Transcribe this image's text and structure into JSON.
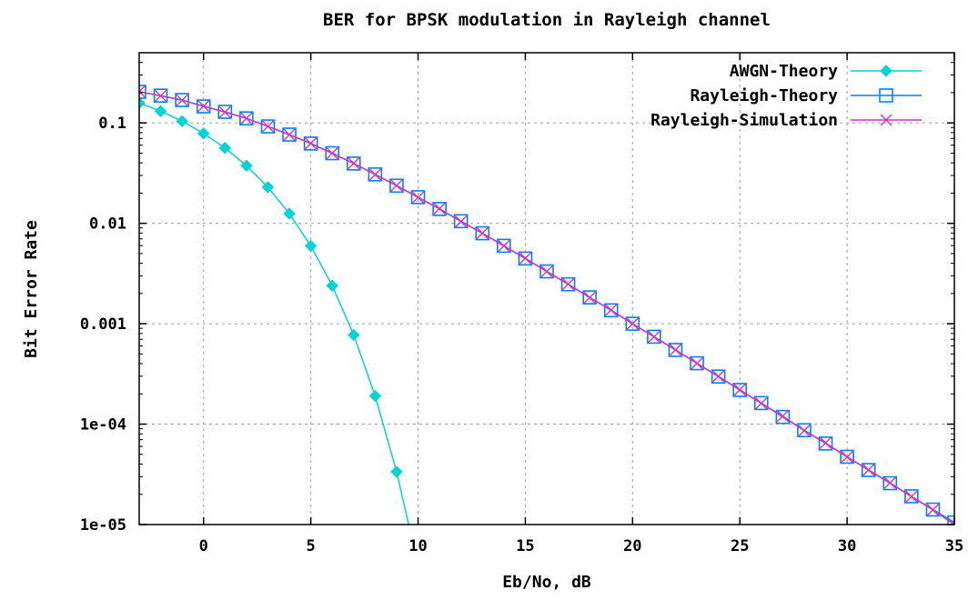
{
  "chart_data": {
    "type": "line",
    "title": "BER for BPSK modulation in Rayleigh channel",
    "xlabel": "Eb/No, dB",
    "ylabel": "Bit Error Rate",
    "xlim": [
      -3,
      35
    ],
    "ylim": [
      1e-05,
      0.5
    ],
    "yscale": "log",
    "grid": true,
    "legend_position": "top-right",
    "x_ticks": [
      0,
      5,
      10,
      15,
      20,
      25,
      30,
      35
    ],
    "x_tick_labels": [
      "0",
      "5",
      "10",
      "15",
      "20",
      "25",
      "30",
      "35"
    ],
    "y_ticks": [
      0.1,
      0.01,
      0.001,
      0.0001,
      1e-05
    ],
    "y_tick_labels": [
      "0.1",
      "0.01",
      "0.001",
      "1e-04",
      "1e-05"
    ],
    "series": [
      {
        "name": "AWGN-Theory",
        "color": "#00d4d4",
        "marker": "diamond",
        "x": [
          -3,
          -2,
          -1,
          0,
          1,
          2,
          3,
          4,
          5,
          6,
          7,
          8,
          9,
          10
        ],
        "y": [
          0.158,
          0.131,
          0.104,
          0.0786,
          0.0563,
          0.0375,
          0.0229,
          0.0125,
          0.00595,
          0.00239,
          0.000773,
          0.000191,
          3.36e-05,
          3.87e-06
        ]
      },
      {
        "name": "Rayleigh-Theory",
        "color": "#0080ff",
        "marker": "square",
        "x": [
          -3,
          -2,
          -1,
          0,
          1,
          2,
          3,
          4,
          5,
          6,
          7,
          8,
          9,
          10,
          11,
          12,
          13,
          14,
          15,
          16,
          17,
          18,
          19,
          20,
          21,
          22,
          23,
          24,
          25,
          26,
          27,
          28,
          29,
          30,
          31,
          32,
          33,
          34,
          35
        ],
        "y": [
          0.204,
          0.187,
          0.169,
          0.146,
          0.129,
          0.111,
          0.0923,
          0.0765,
          0.0623,
          0.0499,
          0.0394,
          0.0307,
          0.0237,
          0.0182,
          0.0139,
          0.0105,
          0.00796,
          0.00597,
          0.00446,
          0.00332,
          0.00247,
          0.00183,
          0.00136,
          0.001,
          0.000742,
          0.000548,
          0.000404,
          0.000298,
          0.000219,
          0.000162,
          0.000118,
          8.7e-05,
          6.41e-05,
          4.73e-05,
          3.49e-05,
          2.58e-05,
          1.91e-05,
          1.41e-05,
          1.05e-05
        ]
      },
      {
        "name": "Rayleigh-Simulation",
        "color": "#cc33cc",
        "marker": "cross",
        "x": [
          -3,
          -2,
          -1,
          0,
          1,
          2,
          3,
          4,
          5,
          6,
          7,
          8,
          9,
          10,
          11,
          12,
          13,
          14,
          15,
          16,
          17,
          18,
          19,
          20,
          21,
          22,
          23,
          24,
          25,
          26,
          27,
          28,
          29,
          30,
          31,
          32,
          33,
          34,
          35
        ],
        "y": [
          0.205,
          0.186,
          0.168,
          0.147,
          0.128,
          0.111,
          0.0925,
          0.0763,
          0.0625,
          0.0498,
          0.0396,
          0.0306,
          0.0238,
          0.0181,
          0.014,
          0.0104,
          0.00798,
          0.00595,
          0.00448,
          0.00331,
          0.00248,
          0.00182,
          0.00137,
          0.001,
          0.00074,
          0.00055,
          0.000402,
          0.000299,
          0.00022,
          0.000161,
          0.00012,
          8.6e-05,
          6.5e-05,
          4.7e-05,
          3.5e-05,
          2.6e-05,
          1.9e-05,
          1.4e-05,
          1e-05
        ]
      }
    ]
  }
}
